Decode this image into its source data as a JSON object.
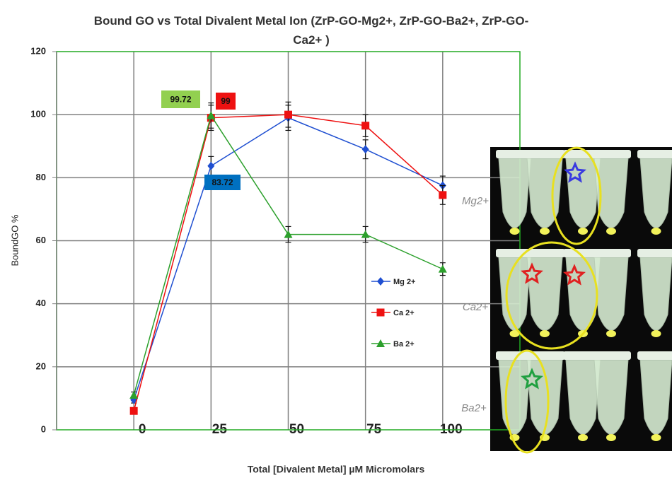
{
  "chart_data": {
    "type": "line",
    "title": "Bound  GO vs Total Divalent Metal Ion  (ZrP-GO-Mg2+, ZrP-GO-Ba2+, ZrP-GO-Ca2+ )",
    "x_label": "Total [Divalent Metal] µM Micromolars",
    "y_label": "BoundGO %",
    "categories": [
      "0",
      "25",
      "50",
      "75",
      "100"
    ],
    "ylim": [
      0,
      120
    ],
    "yticks": [
      0,
      20,
      40,
      60,
      80,
      100,
      120
    ],
    "grid": true,
    "series": [
      {
        "name": "Mg 2+",
        "color": "#1f4fd1",
        "marker": "diamond",
        "values": [
          9.5,
          83.72,
          99,
          89,
          77.5
        ],
        "errors": [
          1,
          3,
          4,
          3,
          3
        ]
      },
      {
        "name": "Ca 2+",
        "color": "#ee1111",
        "marker": "square",
        "values": [
          6,
          99,
          100,
          96.5,
          74.5
        ],
        "errors": [
          1,
          4,
          4,
          3.5,
          3
        ]
      },
      {
        "name": "Ba 2+",
        "color": "#2ca02c",
        "marker": "triangle",
        "values": [
          11,
          99.72,
          62,
          62,
          51
        ],
        "errors": [
          1,
          4,
          2.5,
          2.5,
          2
        ]
      }
    ],
    "photo_labels": [
      "Mg2+",
      "Ca2+",
      "Ba2+"
    ]
  }
}
